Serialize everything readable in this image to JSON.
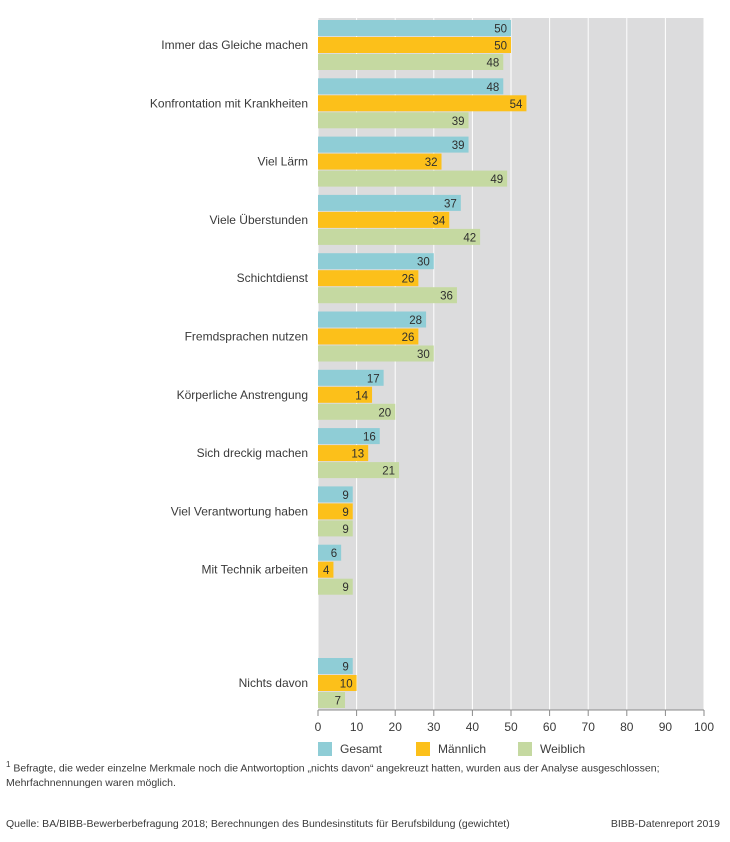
{
  "chart_data": {
    "type": "bar",
    "orientation": "horizontal",
    "categories": [
      "Immer das Gleiche machen",
      "Konfrontation mit Krankheiten",
      "Viel Lärm",
      "Viele Überstunden",
      "Schichtdienst",
      "Fremdsprachen nutzen",
      "Körperliche Anstrengung",
      "Sich dreckig machen",
      "Viel Verantwortung haben",
      "Mit Technik arbeiten",
      "Nichts davon"
    ],
    "series": [
      {
        "name": "Gesamt",
        "color": "#8fcdd6",
        "values": [
          50,
          48,
          39,
          37,
          30,
          28,
          17,
          16,
          9,
          6,
          9
        ]
      },
      {
        "name": "Männlich",
        "color": "#fcc01a",
        "values": [
          50,
          54,
          32,
          34,
          26,
          26,
          14,
          13,
          9,
          4,
          10
        ]
      },
      {
        "name": "Weiblich",
        "color": "#c5d9a1",
        "values": [
          48,
          39,
          49,
          42,
          36,
          30,
          20,
          21,
          9,
          9,
          7
        ]
      }
    ],
    "xlim": [
      0,
      100
    ],
    "xticks": [
      0,
      10,
      20,
      30,
      40,
      50,
      60,
      70,
      80,
      90,
      100
    ],
    "grid": true,
    "legend_position": "bottom",
    "plot_background": "#dcdcdd"
  },
  "footnote": {
    "marker": "1",
    "text": " Befragte, die weder einzelne Merkmale noch die Antwortoption „nichts davon“ angekreuzt hatten, wurden aus der Analyse ausgeschlossen; Mehrfachnennungen waren möglich."
  },
  "source": "Quelle: BA/BIBB-Bewerberbefragung 2018; Berechnungen des Bundesinstituts für Berufsbildung (gewichtet)",
  "credit": "BIBB-Datenreport 2019"
}
